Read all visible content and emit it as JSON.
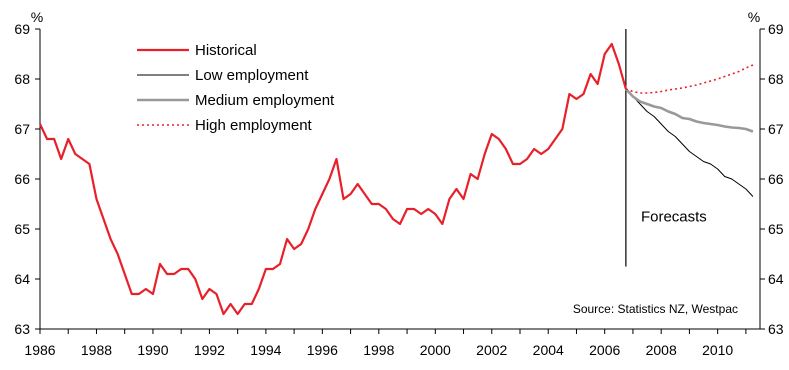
{
  "chart_data": {
    "type": "line",
    "title": "",
    "xlabel": "",
    "ylabel": "",
    "y_unit_left": "%",
    "y_unit_right": "%",
    "xlim": [
      1986,
      2011.5
    ],
    "ylim": [
      63,
      69
    ],
    "x_ticks": [
      1986,
      1988,
      1990,
      1992,
      1994,
      1996,
      1998,
      2000,
      2002,
      2004,
      2006,
      2008,
      2010
    ],
    "y_ticks": [
      63,
      64,
      65,
      66,
      67,
      68,
      69
    ],
    "grid": false,
    "legend_position": "top-left",
    "forecast_divider_x": 2006.75,
    "annotations": [
      {
        "text": "Forecasts",
        "x": 2007.0,
        "y": 65.25
      }
    ],
    "source_note": "Source:  Statistics NZ, Westpac",
    "series": [
      {
        "name": "Historical",
        "color": "#e8202a",
        "dash": "solid",
        "x": [
          1986.0,
          1986.25,
          1986.5,
          1986.75,
          1987.0,
          1987.25,
          1987.5,
          1987.75,
          1988.0,
          1988.25,
          1988.5,
          1988.75,
          1989.0,
          1989.25,
          1989.5,
          1989.75,
          1990.0,
          1990.25,
          1990.5,
          1990.75,
          1991.0,
          1991.25,
          1991.5,
          1991.75,
          1992.0,
          1992.25,
          1992.5,
          1992.75,
          1993.0,
          1993.25,
          1993.5,
          1993.75,
          1994.0,
          1994.25,
          1994.5,
          1994.75,
          1995.0,
          1995.25,
          1995.5,
          1995.75,
          1996.0,
          1996.25,
          1996.5,
          1996.75,
          1997.0,
          1997.25,
          1997.5,
          1997.75,
          1998.0,
          1998.25,
          1998.5,
          1998.75,
          1999.0,
          1999.25,
          1999.5,
          1999.75,
          2000.0,
          2000.25,
          2000.5,
          2000.75,
          2001.0,
          2001.25,
          2001.5,
          2001.75,
          2002.0,
          2002.25,
          2002.5,
          2002.75,
          2003.0,
          2003.25,
          2003.5,
          2003.75,
          2004.0,
          2004.25,
          2004.5,
          2004.75,
          2005.0,
          2005.25,
          2005.5,
          2005.75,
          2006.0,
          2006.25,
          2006.5,
          2006.75
        ],
        "y": [
          67.1,
          66.8,
          66.8,
          66.4,
          66.8,
          66.5,
          66.4,
          66.3,
          65.6,
          65.2,
          64.8,
          64.5,
          64.1,
          63.7,
          63.7,
          63.8,
          63.7,
          64.3,
          64.1,
          64.1,
          64.2,
          64.2,
          64.0,
          63.6,
          63.8,
          63.7,
          63.3,
          63.5,
          63.3,
          63.5,
          63.5,
          63.8,
          64.2,
          64.2,
          64.3,
          64.8,
          64.6,
          64.7,
          65.0,
          65.4,
          65.7,
          66.0,
          66.4,
          65.6,
          65.7,
          65.9,
          65.7,
          65.5,
          65.5,
          65.4,
          65.2,
          65.1,
          65.4,
          65.4,
          65.3,
          65.4,
          65.3,
          65.1,
          65.6,
          65.8,
          65.6,
          66.1,
          66.0,
          66.5,
          66.9,
          66.8,
          66.6,
          66.3,
          66.3,
          66.4,
          66.6,
          66.5,
          66.6,
          66.8,
          67.0,
          67.7,
          67.6,
          67.7,
          68.1,
          67.9,
          68.5,
          68.7,
          68.3,
          67.8
        ]
      },
      {
        "name": "Low employment",
        "color": "#000000",
        "dash": "solid",
        "x": [
          2006.75,
          2007.0,
          2007.25,
          2007.5,
          2007.75,
          2008.0,
          2008.25,
          2008.5,
          2008.75,
          2009.0,
          2009.25,
          2009.5,
          2009.75,
          2010.0,
          2010.25,
          2010.5,
          2010.75,
          2011.0,
          2011.25
        ],
        "y": [
          67.8,
          67.65,
          67.5,
          67.35,
          67.25,
          67.1,
          66.95,
          66.85,
          66.7,
          66.55,
          66.45,
          66.35,
          66.3,
          66.2,
          66.05,
          66.0,
          65.9,
          65.8,
          65.65
        ]
      },
      {
        "name": "Medium employment",
        "color": "#999999",
        "dash": "solid",
        "x": [
          2006.75,
          2007.0,
          2007.25,
          2007.5,
          2007.75,
          2008.0,
          2008.25,
          2008.5,
          2008.75,
          2009.0,
          2009.25,
          2009.5,
          2009.75,
          2010.0,
          2010.25,
          2010.5,
          2010.75,
          2011.0,
          2011.25
        ],
        "y": [
          67.8,
          67.65,
          67.55,
          67.5,
          67.45,
          67.42,
          67.35,
          67.3,
          67.22,
          67.2,
          67.15,
          67.12,
          67.1,
          67.08,
          67.05,
          67.03,
          67.02,
          67.0,
          66.95
        ]
      },
      {
        "name": "High employment",
        "color": "#e8202a",
        "dash": "dotted",
        "x": [
          2006.75,
          2007.0,
          2007.25,
          2007.5,
          2007.75,
          2008.0,
          2008.25,
          2008.5,
          2008.75,
          2009.0,
          2009.25,
          2009.5,
          2009.75,
          2010.0,
          2010.25,
          2010.5,
          2010.75,
          2011.0,
          2011.25
        ],
        "y": [
          67.8,
          67.75,
          67.72,
          67.72,
          67.73,
          67.75,
          67.78,
          67.8,
          67.82,
          67.85,
          67.88,
          67.92,
          67.96,
          68.0,
          68.05,
          68.1,
          68.15,
          68.22,
          68.28
        ]
      }
    ]
  }
}
